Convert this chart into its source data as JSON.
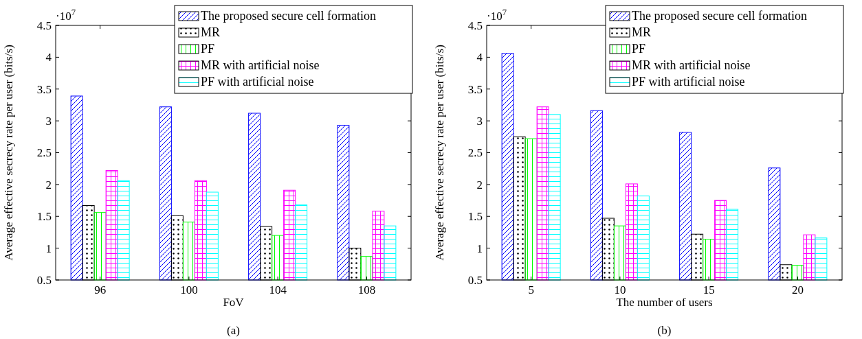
{
  "chart_data": [
    {
      "type": "bar",
      "title": "(a)",
      "xlabel": "FoV",
      "ylabel": "Average effective secrecy rate per user (bits/s)",
      "annotations": [
        "·10$^{7}$"
      ],
      "categories": [
        "96",
        "100",
        "104",
        "108"
      ],
      "ylim": [
        0.5,
        4.5
      ],
      "yticks": [
        0.5,
        1,
        1.5,
        2,
        2.5,
        3,
        3.5,
        4,
        4.5
      ],
      "legend": "top right",
      "grid": false,
      "series": [
        {
          "name": "The proposed secure cell formation",
          "color": "#0000ff",
          "values": [
            3.39,
            3.22,
            3.12,
            2.93
          ]
        },
        {
          "name": "MR",
          "color": "#000000",
          "values": [
            1.67,
            1.51,
            1.34,
            1.0
          ]
        },
        {
          "name": "PF",
          "color": "#00ff00",
          "values": [
            1.56,
            1.41,
            1.2,
            0.87
          ]
        },
        {
          "name": "MR with artificial noise",
          "color": "#ff00ff",
          "values": [
            2.22,
            2.06,
            1.91,
            1.58
          ]
        },
        {
          "name": "PF with artificial noise",
          "color": "#00ffff",
          "values": [
            2.06,
            1.88,
            1.68,
            1.35
          ]
        }
      ]
    },
    {
      "type": "bar",
      "title": "(b)",
      "xlabel": "The number of users",
      "ylabel": "Average effective secrecy rate per user (bits/s)",
      "annotations": [
        "·10$^{7}$"
      ],
      "categories": [
        "5",
        "10",
        "15",
        "20"
      ],
      "ylim": [
        0.5,
        4.5
      ],
      "yticks": [
        0.5,
        1,
        1.5,
        2,
        2.5,
        3,
        3.5,
        4,
        4.5
      ],
      "legend": "top right",
      "grid": false,
      "series": [
        {
          "name": "The proposed secure cell formation",
          "color": "#0000ff",
          "values": [
            4.06,
            3.16,
            2.82,
            2.26
          ]
        },
        {
          "name": "MR",
          "color": "#000000",
          "values": [
            2.75,
            1.47,
            1.22,
            0.74
          ]
        },
        {
          "name": "PF",
          "color": "#00ff00",
          "values": [
            2.72,
            1.35,
            1.14,
            0.73
          ]
        },
        {
          "name": "MR with artificial noise",
          "color": "#ff00ff",
          "values": [
            3.22,
            2.01,
            1.75,
            1.21
          ]
        },
        {
          "name": "PF with artificial noise",
          "color": "#00ffff",
          "values": [
            3.1,
            1.82,
            1.61,
            1.16
          ]
        }
      ]
    }
  ]
}
